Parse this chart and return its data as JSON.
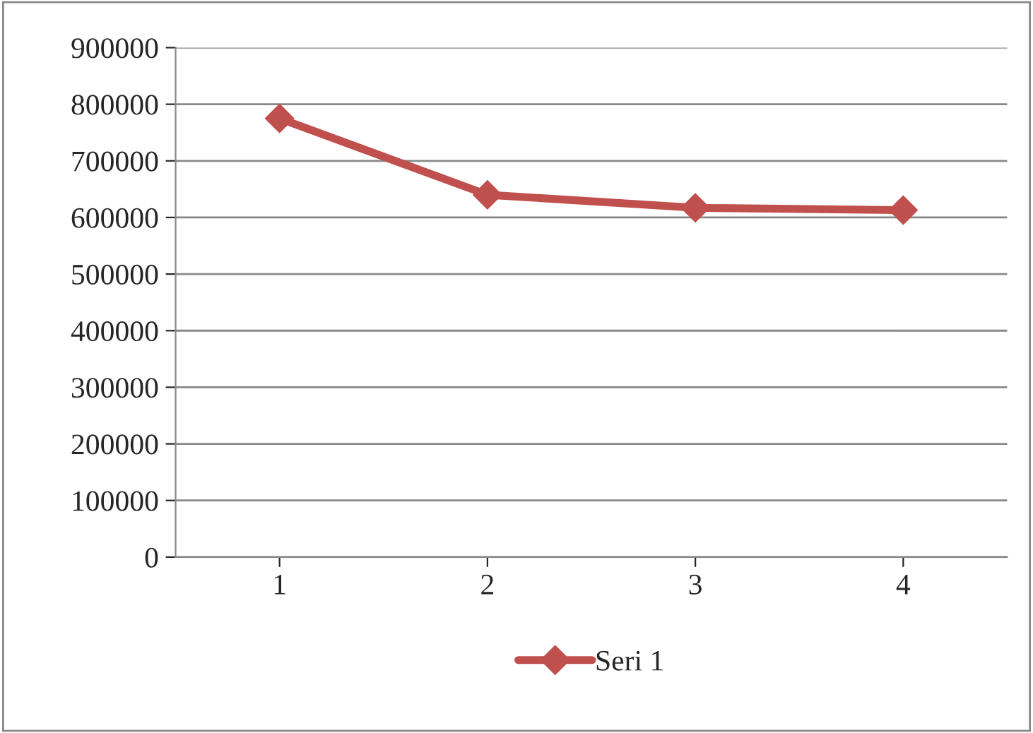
{
  "chart_data": {
    "type": "line",
    "categories": [
      "1",
      "2",
      "3",
      "4"
    ],
    "series": [
      {
        "name": "Seri 1",
        "color": "#c0504d",
        "values": [
          775000,
          640000,
          617000,
          613000
        ]
      }
    ],
    "ylim": [
      0,
      900000
    ],
    "yticks": [
      0,
      100000,
      200000,
      300000,
      400000,
      500000,
      600000,
      700000,
      800000,
      900000
    ],
    "grid": "y",
    "legend": "bottom",
    "marker": "diamond",
    "line_style": "solid"
  }
}
